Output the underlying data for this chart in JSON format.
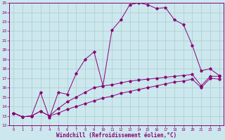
{
  "xlabel": "Windchill (Refroidissement éolien,°C)",
  "background_color": "#cce8ee",
  "line_color": "#880077",
  "xlim": [
    -0.5,
    23.5
  ],
  "ylim": [
    12,
    25
  ],
  "xticks": [
    0,
    1,
    2,
    3,
    4,
    5,
    6,
    7,
    8,
    9,
    10,
    11,
    12,
    13,
    14,
    15,
    16,
    17,
    18,
    19,
    20,
    21,
    22,
    23
  ],
  "yticks": [
    12,
    13,
    14,
    15,
    16,
    17,
    18,
    19,
    20,
    21,
    22,
    23,
    24,
    25
  ],
  "grid_color": "#aacccc",
  "series": [
    {
      "x": [
        0,
        1,
        2,
        3,
        4,
        5,
        6,
        7,
        8,
        9,
        10,
        11,
        12,
        13,
        14,
        15,
        16,
        17,
        18,
        19,
        20,
        21,
        22,
        23
      ],
      "y": [
        13.3,
        12.9,
        13.0,
        15.5,
        12.8,
        15.5,
        15.3,
        17.5,
        19.0,
        19.8,
        16.2,
        22.1,
        23.2,
        24.8,
        25.0,
        24.8,
        24.4,
        24.5,
        23.2,
        22.7,
        20.5,
        17.8,
        18.0,
        17.3
      ]
    },
    {
      "x": [
        0,
        1,
        2,
        3,
        4,
        5,
        6,
        7,
        8,
        9,
        10,
        11,
        12,
        13,
        14,
        15,
        16,
        17,
        18,
        19,
        20,
        21,
        22,
        23
      ],
      "y": [
        13.3,
        12.9,
        13.0,
        13.5,
        13.0,
        13.8,
        14.5,
        15.0,
        15.5,
        16.0,
        16.2,
        16.3,
        16.5,
        16.7,
        16.8,
        16.9,
        17.0,
        17.1,
        17.2,
        17.3,
        17.4,
        16.2,
        17.2,
        17.2
      ]
    },
    {
      "x": [
        0,
        1,
        2,
        3,
        4,
        5,
        6,
        7,
        8,
        9,
        10,
        11,
        12,
        13,
        14,
        15,
        16,
        17,
        18,
        19,
        20,
        21,
        22,
        23
      ],
      "y": [
        13.3,
        12.9,
        13.0,
        13.5,
        13.0,
        13.3,
        13.7,
        14.0,
        14.3,
        14.6,
        14.9,
        15.1,
        15.4,
        15.6,
        15.8,
        16.0,
        16.2,
        16.4,
        16.6,
        16.7,
        16.9,
        16.0,
        17.0,
        16.9
      ]
    }
  ]
}
